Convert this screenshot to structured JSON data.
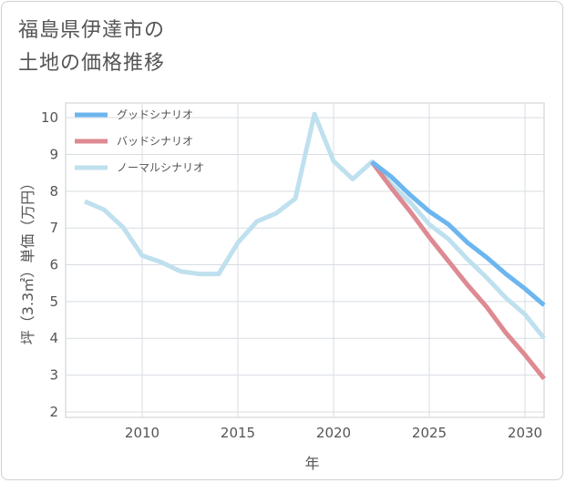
{
  "title": {
    "line1": "福島県伊達市の",
    "line2": "土地の価格推移"
  },
  "chart_data": {
    "type": "line",
    "xlabel": "年",
    "ylabel": "坪（3.3㎡）単価（万円）",
    "xlim": [
      2006,
      2031
    ],
    "ylim": [
      1.85,
      10.4
    ],
    "xticks": [
      2010,
      2015,
      2020,
      2025,
      2030
    ],
    "yticks": [
      2,
      3,
      4,
      5,
      6,
      7,
      8,
      9,
      10
    ],
    "grid": true,
    "legend_position": "top-left",
    "series": [
      {
        "name": "グッドシナリオ",
        "color": "#6cb6f0",
        "x": [
          2022,
          2023,
          2024,
          2025,
          2026,
          2027,
          2028,
          2029,
          2030,
          2031
        ],
        "y": [
          8.8,
          8.4,
          7.9,
          7.45,
          7.1,
          6.6,
          6.2,
          5.75,
          5.35,
          4.9
        ]
      },
      {
        "name": "バッドシナリオ",
        "color": "#de8a92",
        "x": [
          2022,
          2023,
          2024,
          2025,
          2026,
          2027,
          2028,
          2029,
          2030,
          2031
        ],
        "y": [
          8.8,
          8.1,
          7.45,
          6.75,
          6.1,
          5.45,
          4.85,
          4.15,
          3.55,
          2.9
        ]
      },
      {
        "name": "ノーマルシナリオ",
        "color": "#bfe0ee",
        "x": [
          2007,
          2008,
          2009,
          2010,
          2011,
          2012,
          2013,
          2014,
          2015,
          2016,
          2017,
          2018,
          2019,
          2020,
          2021,
          2022,
          2023,
          2024,
          2025,
          2026,
          2027,
          2028,
          2029,
          2030,
          2031
        ],
        "y": [
          7.72,
          7.5,
          7.02,
          6.25,
          6.07,
          5.82,
          5.75,
          5.75,
          6.6,
          7.18,
          7.4,
          7.8,
          10.1,
          8.82,
          8.33,
          8.8,
          8.2,
          7.7,
          7.1,
          6.7,
          6.15,
          5.65,
          5.1,
          4.65,
          4.0
        ]
      }
    ]
  }
}
